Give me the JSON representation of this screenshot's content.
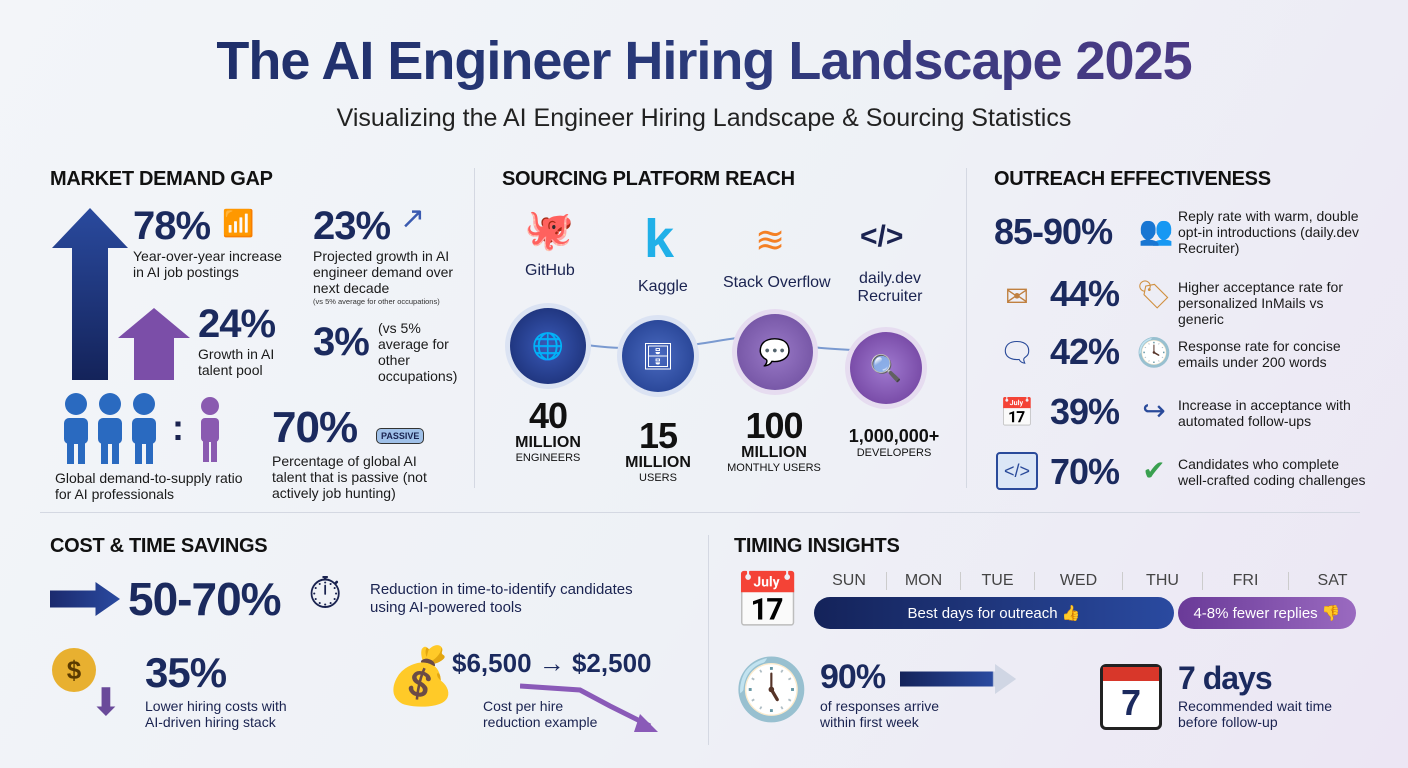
{
  "title": "The AI Engineer Hiring Landscape 2025",
  "subtitle": "Visualizing the AI Engineer Hiring Landscape & Sourcing Statistics",
  "market": {
    "heading": "MARKET DEMAND GAP",
    "stat1": {
      "value": "78%",
      "label": "Year-over-year increase in AI job postings"
    },
    "stat2": {
      "value": "23%",
      "label": "Projected growth in AI engineer demand over next decade",
      "note": "(vs 5% average for other occupations)"
    },
    "stat3": {
      "value": "24%",
      "label": "Growth in AI talent pool"
    },
    "stat4": {
      "value": "3%",
      "label": "(vs 5% average for other occupations)"
    },
    "ratio": {
      "label": "Global demand-to-supply ratio for AI professionals",
      "separator": ":"
    },
    "stat5": {
      "value": "70%",
      "badge": "PASSIVE",
      "label": "Percentage of global AI talent that is passive (not actively job hunting)"
    }
  },
  "platforms": {
    "heading": "SOURCING PLATFORM REACH",
    "items": [
      {
        "name": "GitHub",
        "value": "40",
        "unit": "MILLION",
        "desc": "ENGINEERS",
        "icon": "globe-icon",
        "color": "#1e3a8a"
      },
      {
        "name": "Kaggle",
        "value": "15",
        "unit": "MILLION",
        "desc": "USERS",
        "icon": "database-icon",
        "color": "#2a4f9e"
      },
      {
        "name": "Stack Overflow",
        "value": "100",
        "unit": "MILLION",
        "desc": "MONTHLY USERS",
        "icon": "chat-icon",
        "color": "#6a4a9a"
      },
      {
        "name": "daily.dev Recruiter",
        "value": "1,000,000+",
        "unit": "",
        "desc": "DEVELOPERS",
        "icon": "search-icon",
        "color": "#7a4aa8"
      }
    ]
  },
  "outreach": {
    "heading": "OUTREACH EFFECTIVENESS",
    "items": [
      {
        "value": "85-90%",
        "label": "Reply rate with warm, double opt-in introductions (daily.dev Recruiter)",
        "icon": "chat-people-icon"
      },
      {
        "value": "44%",
        "label": "Higher acceptance rate for personalized InMails vs generic",
        "icon": "tag-icon",
        "left_icon": "envelope-icon"
      },
      {
        "value": "42%",
        "label": "Response rate for concise emails under 200 words",
        "icon": "clock-icon",
        "left_icon": "chat-bubbles-icon"
      },
      {
        "value": "39%",
        "label": "Increase in acceptance with automated follow-ups",
        "icon": "forward-arrow-icon",
        "left_icon": "calendar-clock-icon"
      },
      {
        "value": "70%",
        "label": "Candidates who complete well-crafted coding challenges",
        "icon": "check-icon",
        "left_icon": "code-window-icon"
      }
    ]
  },
  "cost": {
    "heading": "COST & TIME SAVINGS",
    "stat1": {
      "value": "50-70%",
      "label": "Reduction in time-to-identify candidates using AI-powered tools"
    },
    "stat2": {
      "value": "35%",
      "label": "Lower hiring costs with AI-driven hiring stack"
    },
    "stat3": {
      "value": "$6,500 → $2,500",
      "label": "Cost per hire reduction example"
    }
  },
  "timing": {
    "heading": "TIMING INSIGHTS",
    "days": [
      "SUN",
      "MON",
      "TUE",
      "WED",
      "THU",
      "FRI",
      "SAT"
    ],
    "best": "Best days for outreach 👍",
    "worst": "4-8% fewer replies 👎",
    "stat1": {
      "value": "90%",
      "label": "of responses arrive within first week"
    },
    "stat2": {
      "value": "7 days",
      "label": "Recommended wait time before follow-up",
      "calendar_number": "7"
    }
  },
  "colors": {
    "navy": "#1b2a5e",
    "purple": "#7a4aa8",
    "accent": "#2a4f9e"
  }
}
